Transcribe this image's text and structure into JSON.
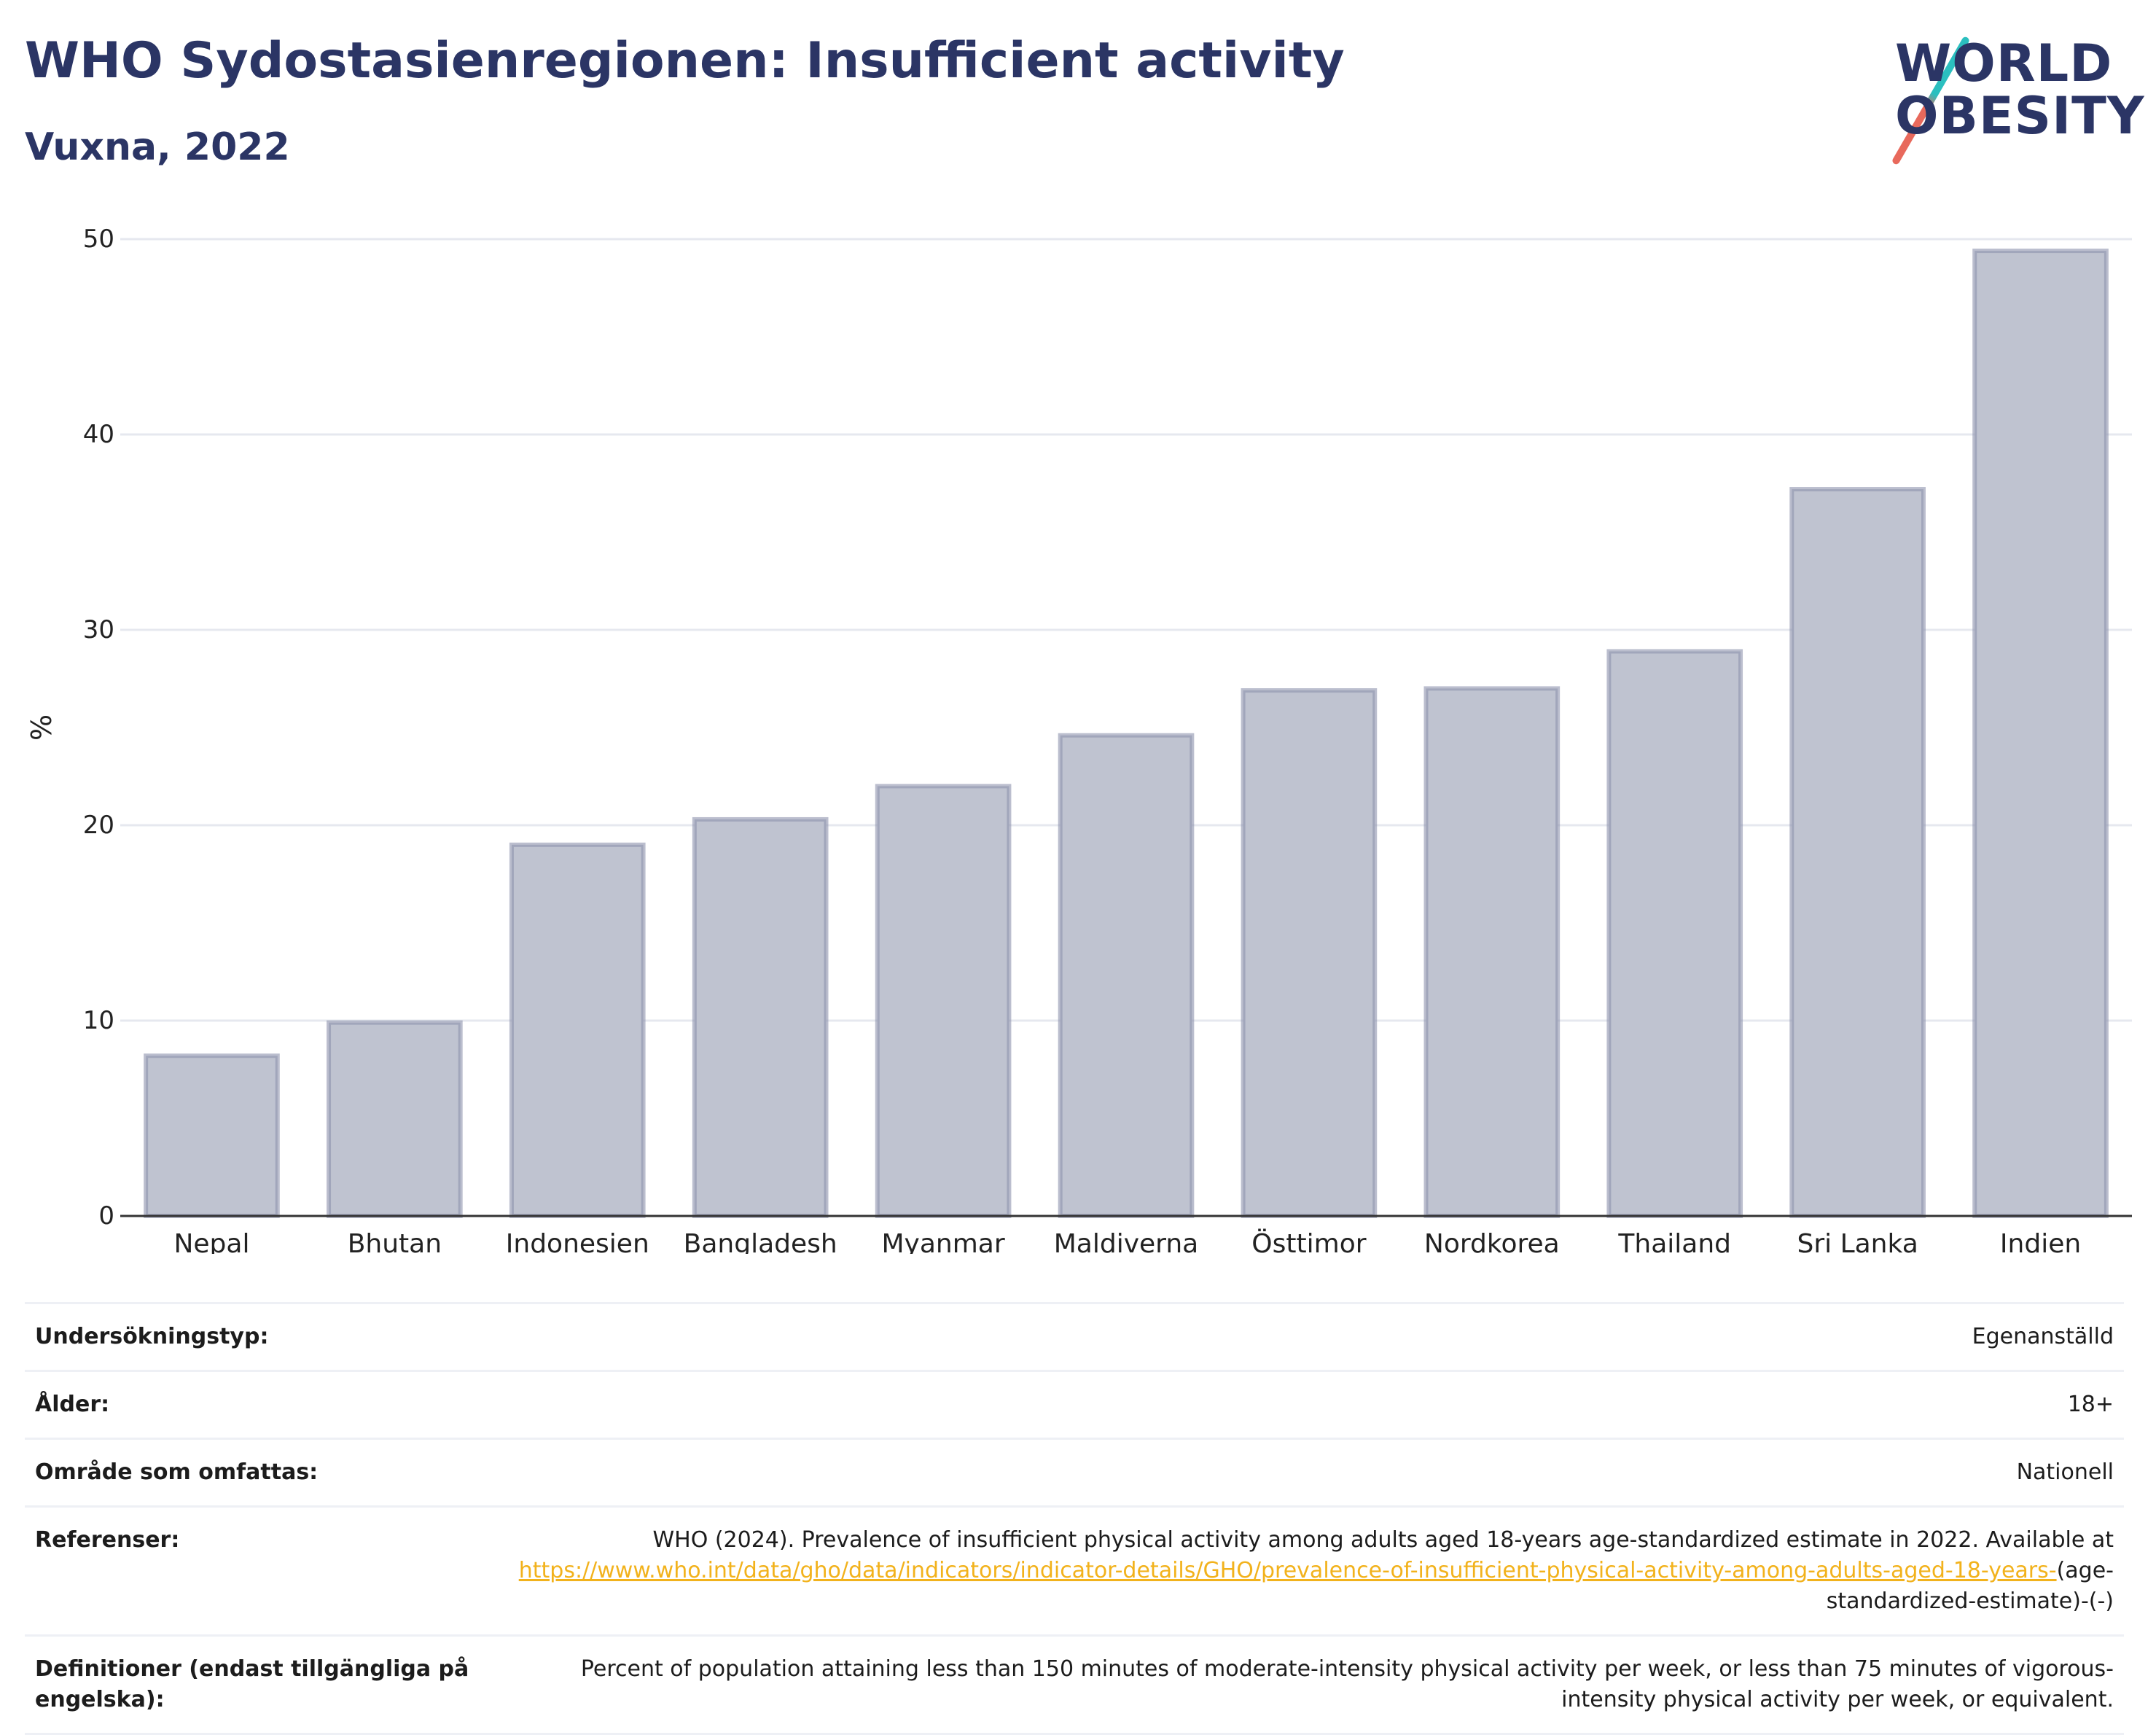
{
  "header": {
    "title": "WHO Sydostasienregionen: Insufficient activity",
    "subtitle": "Vuxna, 2022"
  },
  "logo": {
    "line1": "WORLD",
    "line2": "OBESITY",
    "colors": {
      "text": "#2b3565",
      "slash_top": "#2bbfbf",
      "slash_bottom": "#e8695c"
    }
  },
  "chart_data": {
    "type": "bar",
    "categories": [
      "Nepal",
      "Bhutan",
      "Indonesien",
      "Bangladesh",
      "Myanmar",
      "Maldiverna",
      "Östtimor",
      "Nordkorea",
      "Thailand",
      "Sri Lanka",
      "Indien"
    ],
    "values": [
      8.2,
      9.9,
      19.0,
      20.3,
      22.0,
      24.6,
      26.9,
      27.0,
      28.9,
      37.2,
      49.4
    ],
    "ylabel": "%",
    "xlabel": "",
    "ylim": [
      0,
      50
    ],
    "yticks": [
      "0",
      "10",
      "20",
      "30",
      "40",
      "50"
    ],
    "grid": true,
    "colors": {
      "bar_fill": "#bfc3d0",
      "bar_stroke": "#8d93ad",
      "grid": "#e6e8ef",
      "axis": "#333333"
    }
  },
  "info_table": [
    {
      "label": "Undersökningstyp:",
      "value": "Egenanställd"
    },
    {
      "label": "Ålder:",
      "value": "18+"
    },
    {
      "label": "Område som omfattas:",
      "value": "Nationell"
    },
    {
      "label": "Referenser:",
      "value_pre": "WHO (2024). Prevalence of insufficient physical activity among adults aged 18-years age-standardized estimate in 2022. Available at",
      "link": "https://www.who.int/data/gho/data/indicators/indicator-details/GHO/prevalence-of-insufficient-physical-activity-among-adults-aged-18-years-",
      "value_post": "(age-standardized-estimate)-(-)"
    },
    {
      "label": "Definitioner (endast tillgängliga på engelska):",
      "value": "Percent of population attaining less than 150 minutes of moderate-intensity physical activity per week, or less than 75 minutes of vigorous-intensity physical activity per week, or equivalent."
    }
  ]
}
